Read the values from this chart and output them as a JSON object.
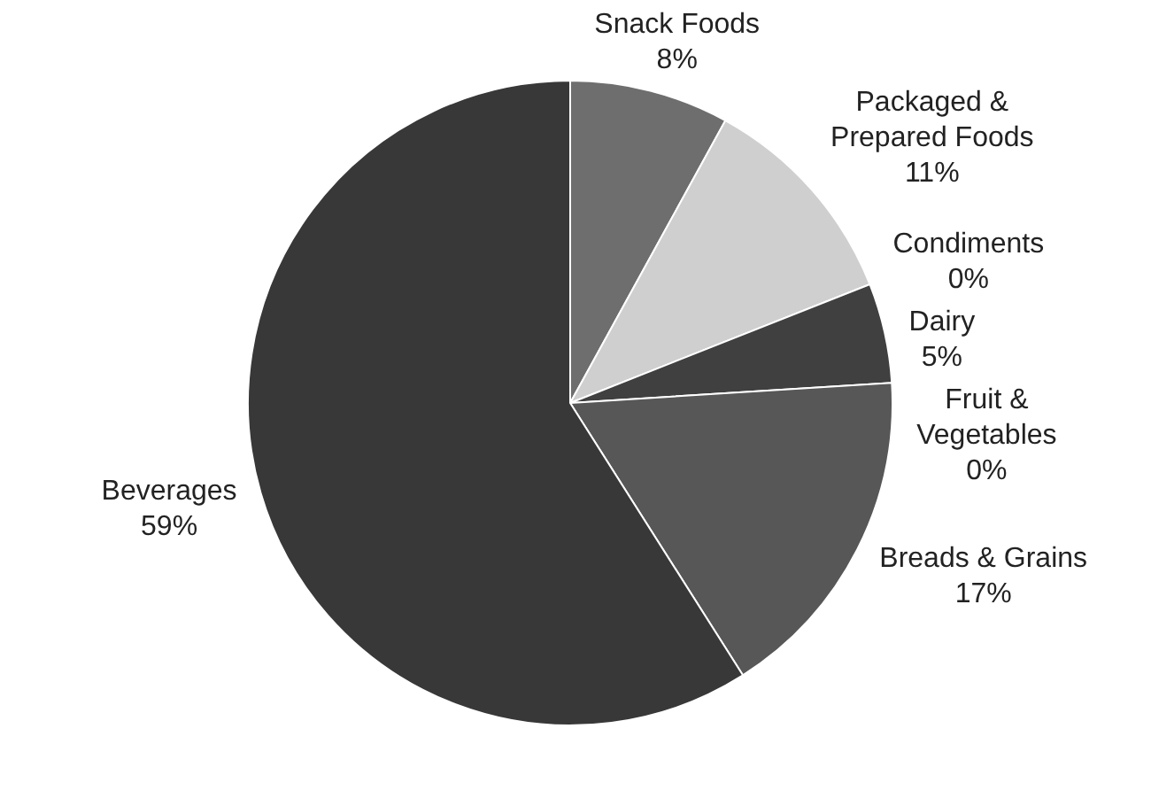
{
  "chart_data": {
    "type": "pie",
    "categories": [
      "Snack Foods",
      "Packaged & Prepared Foods",
      "Condiments",
      "Dairy",
      "Fruit & Vegetables",
      "Breads & Grains",
      "Beverages"
    ],
    "values": [
      8,
      11,
      0,
      5,
      0,
      17,
      59
    ],
    "colors": [
      "#6e6e6e",
      "#cfcfcf",
      "#8a8a8a",
      "#404040",
      "#9a9a9a",
      "#575757",
      "#383838"
    ],
    "value_labels": [
      "8%",
      "11%",
      "0%",
      "5%",
      "0%",
      "17%",
      "59%"
    ],
    "legend": false
  }
}
